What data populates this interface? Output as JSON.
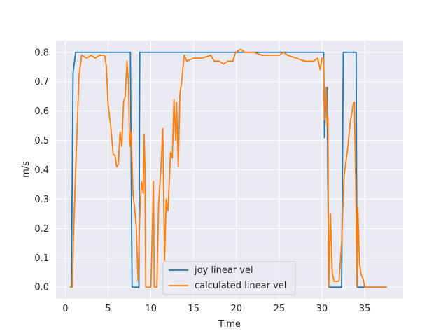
{
  "chart_data": {
    "type": "line",
    "title": "",
    "xlabel": "Time",
    "ylabel": "m/s",
    "xlim": [
      -1.1,
      39.5
    ],
    "ylim": [
      -0.04,
      0.84
    ],
    "xticks": [
      0,
      5,
      10,
      15,
      20,
      25,
      30,
      35
    ],
    "yticks": [
      0.0,
      0.1,
      0.2,
      0.3,
      0.4,
      0.5,
      0.6,
      0.7,
      0.8
    ],
    "ytick_labels": [
      "0.0",
      "0.1",
      "0.2",
      "0.3",
      "0.4",
      "0.5",
      "0.6",
      "0.7",
      "0.8"
    ],
    "grid": true,
    "legend_position": "lower-center",
    "series": [
      {
        "name": "joy linear vel",
        "color": "#1f77b4",
        "points": [
          [
            0.5,
            0.0
          ],
          [
            0.7,
            0.0
          ],
          [
            0.9,
            0.73
          ],
          [
            1.2,
            0.8
          ],
          [
            7.6,
            0.8
          ],
          [
            7.8,
            0.0
          ],
          [
            8.6,
            0.0
          ],
          [
            8.7,
            0.8
          ],
          [
            30.2,
            0.8
          ],
          [
            30.3,
            0.51
          ],
          [
            30.4,
            0.6
          ],
          [
            30.6,
            0.68
          ],
          [
            30.8,
            0.0
          ],
          [
            32.3,
            0.0
          ],
          [
            32.5,
            0.8
          ],
          [
            34.0,
            0.8
          ],
          [
            34.1,
            0.0
          ],
          [
            37.6,
            0.0
          ]
        ]
      },
      {
        "name": "calculated linear vel",
        "color": "#ff7f0e",
        "points": [
          [
            0.5,
            0.0
          ],
          [
            0.8,
            0.0
          ],
          [
            1.0,
            0.22
          ],
          [
            1.3,
            0.48
          ],
          [
            1.6,
            0.72
          ],
          [
            1.9,
            0.79
          ],
          [
            2.5,
            0.78
          ],
          [
            3.0,
            0.79
          ],
          [
            3.5,
            0.78
          ],
          [
            4.0,
            0.79
          ],
          [
            4.6,
            0.79
          ],
          [
            4.8,
            0.75
          ],
          [
            5.0,
            0.62
          ],
          [
            5.3,
            0.55
          ],
          [
            5.6,
            0.45
          ],
          [
            5.8,
            0.45
          ],
          [
            6.0,
            0.41
          ],
          [
            6.2,
            0.42
          ],
          [
            6.4,
            0.53
          ],
          [
            6.6,
            0.48
          ],
          [
            6.8,
            0.63
          ],
          [
            7.0,
            0.65
          ],
          [
            7.2,
            0.77
          ],
          [
            7.4,
            0.69
          ],
          [
            7.5,
            0.48
          ],
          [
            7.7,
            0.53
          ],
          [
            7.9,
            0.32
          ],
          [
            8.1,
            0.27
          ],
          [
            8.3,
            0.2
          ],
          [
            8.5,
            0.02
          ],
          [
            8.7,
            0.24
          ],
          [
            8.9,
            0.36
          ],
          [
            9.1,
            0.32
          ],
          [
            9.2,
            0.52
          ],
          [
            9.3,
            0.42
          ],
          [
            9.4,
            0.0
          ],
          [
            9.8,
            0.0
          ],
          [
            10.0,
            0.0
          ],
          [
            10.3,
            0.36
          ],
          [
            10.4,
            0.0
          ],
          [
            10.7,
            0.0
          ],
          [
            10.9,
            0.28
          ],
          [
            11.2,
            0.42
          ],
          [
            11.4,
            0.54
          ],
          [
            11.6,
            0.09
          ],
          [
            11.8,
            0.3
          ],
          [
            12.0,
            0.26
          ],
          [
            12.3,
            0.46
          ],
          [
            12.5,
            0.44
          ],
          [
            12.7,
            0.64
          ],
          [
            12.9,
            0.5
          ],
          [
            13.0,
            0.63
          ],
          [
            13.2,
            0.41
          ],
          [
            13.4,
            0.66
          ],
          [
            13.6,
            0.7
          ],
          [
            13.9,
            0.79
          ],
          [
            14.2,
            0.77
          ],
          [
            15.0,
            0.78
          ],
          [
            16.0,
            0.78
          ],
          [
            17.0,
            0.79
          ],
          [
            17.4,
            0.77
          ],
          [
            18.0,
            0.77
          ],
          [
            18.5,
            0.76
          ],
          [
            19.0,
            0.77
          ],
          [
            19.6,
            0.77
          ],
          [
            19.9,
            0.8
          ],
          [
            20.5,
            0.81
          ],
          [
            21.0,
            0.8
          ],
          [
            22.0,
            0.8
          ],
          [
            23.0,
            0.79
          ],
          [
            24.0,
            0.79
          ],
          [
            25.0,
            0.79
          ],
          [
            25.5,
            0.8
          ],
          [
            26.0,
            0.79
          ],
          [
            27.0,
            0.78
          ],
          [
            28.0,
            0.77
          ],
          [
            29.0,
            0.77
          ],
          [
            29.5,
            0.78
          ],
          [
            29.8,
            0.74
          ],
          [
            30.0,
            0.78
          ],
          [
            30.2,
            0.78
          ],
          [
            30.3,
            0.57
          ],
          [
            30.5,
            0.68
          ],
          [
            30.6,
            0.55
          ],
          [
            30.7,
            0.58
          ],
          [
            30.8,
            0.0
          ],
          [
            31.0,
            0.25
          ],
          [
            31.2,
            0.05
          ],
          [
            31.4,
            0.02
          ],
          [
            32.0,
            0.02
          ],
          [
            32.3,
            0.15
          ],
          [
            32.6,
            0.38
          ],
          [
            33.0,
            0.47
          ],
          [
            33.3,
            0.56
          ],
          [
            33.7,
            0.63
          ],
          [
            33.8,
            0.63
          ],
          [
            34.0,
            0.26
          ],
          [
            34.1,
            0.0
          ],
          [
            34.2,
            0.27
          ],
          [
            34.4,
            0.08
          ],
          [
            34.6,
            0.04
          ],
          [
            34.8,
            0.03
          ],
          [
            35.0,
            0.0
          ],
          [
            37.6,
            0.0
          ]
        ]
      }
    ]
  }
}
